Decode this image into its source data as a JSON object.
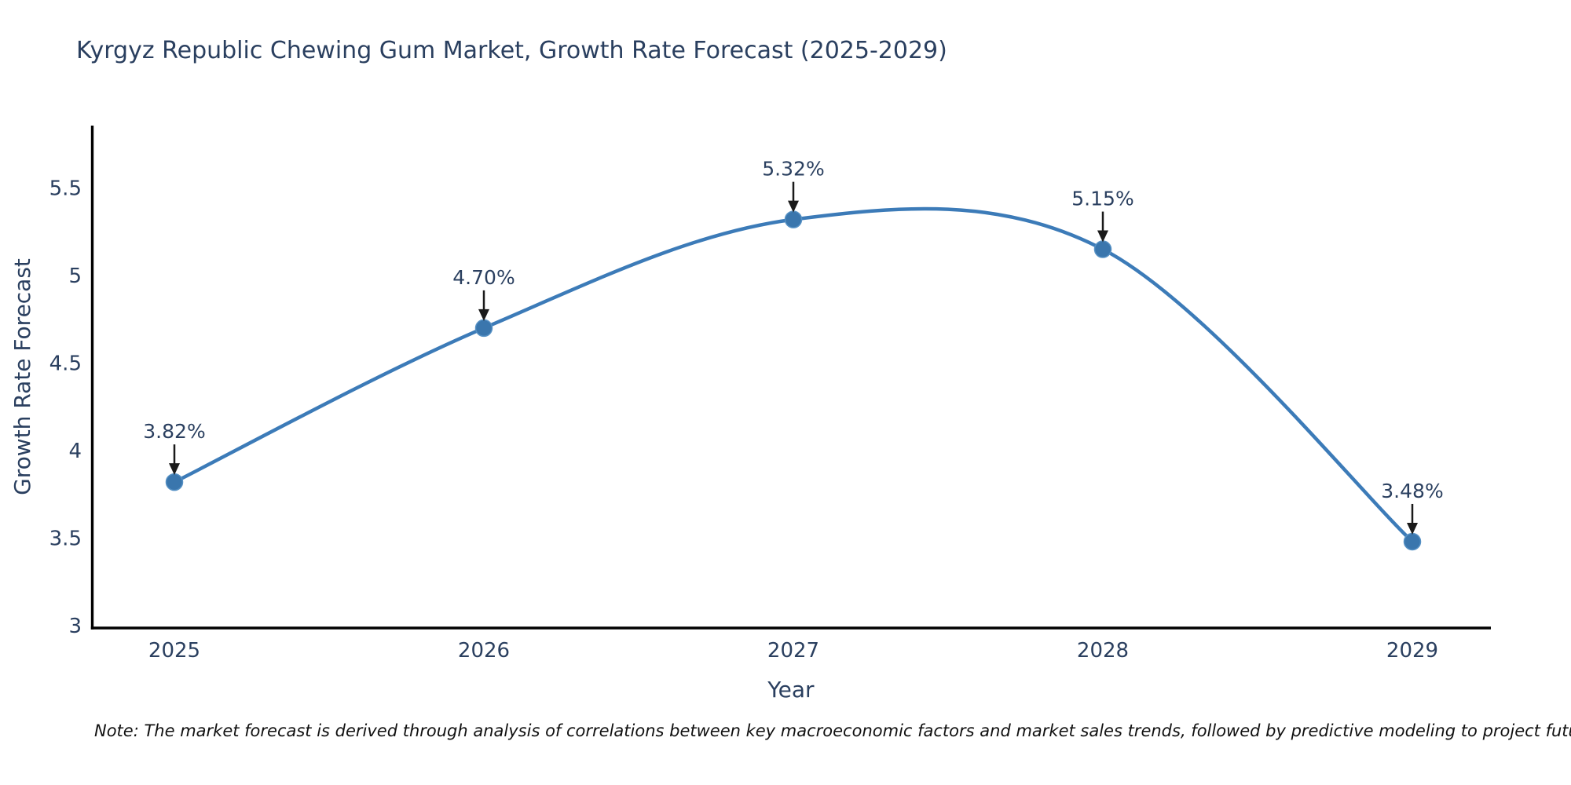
{
  "header": {
    "title": "Kyrgyz Republic Chewing Gum Market, Growth Rate Forecast (2025-2029)"
  },
  "footer": {
    "note": "Note: The market forecast is derived through analysis of correlations between key macroeconomic factors and market sales trends, followed by predictive modeling to project future sales"
  },
  "chart_data": {
    "type": "line",
    "title": "Kyrgyz Republic Chewing Gum Market, Growth Rate Forecast (2025-2029)",
    "xlabel": "Year",
    "ylabel": "Growth Rate Forecast",
    "x": [
      2025,
      2026,
      2027,
      2028,
      2029
    ],
    "series": [
      {
        "name": "Growth Rate Forecast",
        "values": [
          3.82,
          4.7,
          5.32,
          5.15,
          3.48
        ]
      }
    ],
    "point_labels": [
      "3.82%",
      "4.70%",
      "5.32%",
      "5.15%",
      "3.48%"
    ],
    "xticks": {
      "values": [
        2025,
        2026,
        2027,
        2028,
        2029
      ],
      "labels": [
        "2025",
        "2026",
        "2027",
        "2028",
        "2029"
      ]
    },
    "yticks": {
      "values": [
        3,
        3.5,
        4,
        4.5,
        5,
        5.5
      ],
      "labels": [
        "3",
        "3.5",
        "4",
        "4.5",
        "5",
        "5.5"
      ]
    },
    "ylim": [
      3,
      5.87
    ],
    "grid": false,
    "legend_position": "none",
    "curve": "spline",
    "annotations_have_arrows": true,
    "colors": {
      "line": "#3c7bb8",
      "marker": "#3a76ad",
      "marker_edge": "#5590c4",
      "axis": "#000000",
      "tick_text": "#2a3f5f",
      "axis_title_text": "#2a3f5f",
      "annotation_text": "#2a3f5f",
      "arrow": "#1a1a1a",
      "title_text": "#2a3f5f",
      "note_text": "#111111"
    }
  }
}
